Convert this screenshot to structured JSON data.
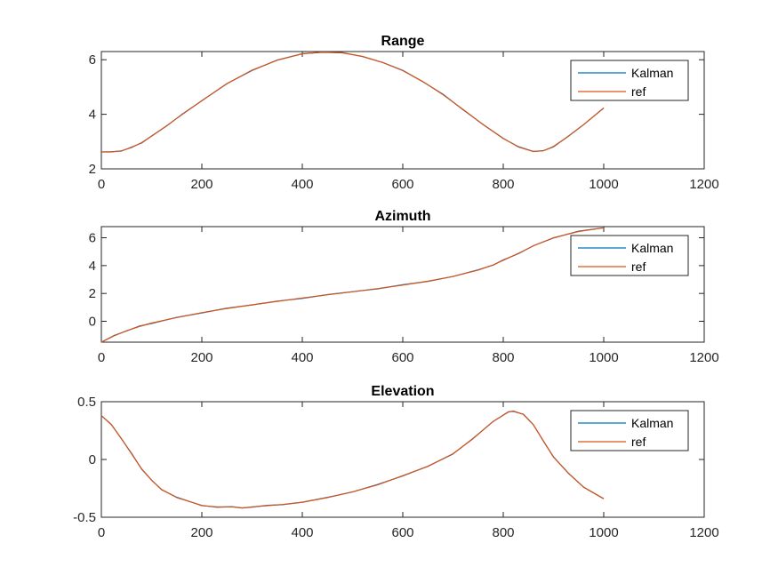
{
  "chart_data": [
    {
      "type": "line",
      "title": "Range",
      "xlim": [
        0,
        1200
      ],
      "ylim": [
        2,
        6.3
      ],
      "xticks": [
        0,
        200,
        400,
        600,
        800,
        1000,
        1200
      ],
      "yticks": [
        2,
        4,
        6
      ],
      "legend_position": "top-right",
      "series": [
        {
          "name": "Kalman",
          "color": "#0072BD",
          "x": [
            0,
            20,
            40,
            60,
            80,
            100,
            130,
            160,
            200,
            250,
            300,
            350,
            400,
            440,
            480,
            520,
            560,
            600,
            640,
            680,
            720,
            760,
            800,
            830,
            860,
            880,
            900,
            930,
            960,
            1000
          ],
          "y": [
            2.62,
            2.62,
            2.66,
            2.78,
            2.96,
            3.2,
            3.58,
            3.98,
            4.5,
            5.12,
            5.62,
            5.98,
            6.22,
            6.28,
            6.25,
            6.12,
            5.9,
            5.6,
            5.2,
            4.72,
            4.18,
            3.62,
            3.12,
            2.8,
            2.64,
            2.66,
            2.82,
            3.2,
            3.62,
            4.23
          ]
        },
        {
          "name": "ref",
          "color": "#D95319",
          "x": [
            0,
            20,
            40,
            60,
            80,
            100,
            130,
            160,
            200,
            250,
            300,
            350,
            400,
            440,
            480,
            520,
            560,
            600,
            640,
            680,
            720,
            760,
            800,
            830,
            860,
            880,
            900,
            930,
            960,
            1000
          ],
          "y": [
            2.62,
            2.62,
            2.66,
            2.78,
            2.96,
            3.2,
            3.58,
            3.98,
            4.5,
            5.12,
            5.62,
            5.98,
            6.22,
            6.28,
            6.25,
            6.12,
            5.9,
            5.6,
            5.2,
            4.72,
            4.18,
            3.62,
            3.12,
            2.8,
            2.64,
            2.66,
            2.82,
            3.2,
            3.62,
            4.23
          ]
        }
      ]
    },
    {
      "type": "line",
      "title": "Azimuth",
      "xlim": [
        0,
        1200
      ],
      "ylim": [
        -1.5,
        6.8
      ],
      "xticks": [
        0,
        200,
        400,
        600,
        800,
        1000,
        1200
      ],
      "yticks": [
        0,
        2,
        4,
        6
      ],
      "legend_position": "top-right",
      "series": [
        {
          "name": "Kalman",
          "color": "#0072BD",
          "x": [
            0,
            25,
            50,
            75,
            100,
            150,
            200,
            250,
            300,
            350,
            400,
            450,
            500,
            550,
            600,
            650,
            700,
            750,
            780,
            800,
            830,
            860,
            900,
            950,
            1000
          ],
          "y": [
            -1.5,
            -1.05,
            -0.68,
            -0.38,
            -0.13,
            0.27,
            0.62,
            0.92,
            1.18,
            1.43,
            1.67,
            1.9,
            2.12,
            2.35,
            2.6,
            2.88,
            3.22,
            3.68,
            4.05,
            4.38,
            4.88,
            5.42,
            6.0,
            6.45,
            6.72
          ]
        },
        {
          "name": "ref",
          "color": "#D95319",
          "x": [
            0,
            25,
            50,
            75,
            100,
            150,
            200,
            250,
            300,
            350,
            400,
            450,
            500,
            550,
            600,
            650,
            700,
            750,
            780,
            800,
            830,
            860,
            900,
            950,
            1000
          ],
          "y": [
            -1.5,
            -1.05,
            -0.68,
            -0.38,
            -0.13,
            0.27,
            0.62,
            0.92,
            1.18,
            1.43,
            1.67,
            1.9,
            2.12,
            2.35,
            2.6,
            2.88,
            3.22,
            3.68,
            4.05,
            4.38,
            4.88,
            5.42,
            6.0,
            6.45,
            6.72
          ]
        }
      ]
    },
    {
      "type": "line",
      "title": "Elevation",
      "xlim": [
        0,
        1200
      ],
      "ylim": [
        -0.5,
        0.5
      ],
      "xticks": [
        0,
        200,
        400,
        600,
        800,
        1000,
        1200
      ],
      "yticks": [
        -0.5,
        0,
        0.5
      ],
      "legend_position": "top-right",
      "series": [
        {
          "name": "Kalman",
          "color": "#0072BD",
          "x": [
            0,
            20,
            40,
            60,
            80,
            100,
            120,
            150,
            180,
            200,
            230,
            260,
            280,
            300,
            330,
            360,
            400,
            450,
            500,
            550,
            600,
            650,
            700,
            740,
            780,
            810,
            820,
            840,
            860,
            880,
            900,
            930,
            960,
            1000
          ],
          "y": [
            0.38,
            0.3,
            0.18,
            0.05,
            -0.08,
            -0.18,
            -0.26,
            -0.33,
            -0.37,
            -0.4,
            -0.41,
            -0.41,
            -0.42,
            -0.41,
            -0.4,
            -0.39,
            -0.37,
            -0.33,
            -0.28,
            -0.22,
            -0.14,
            -0.06,
            0.05,
            0.18,
            0.33,
            0.41,
            0.42,
            0.39,
            0.3,
            0.16,
            0.02,
            -0.12,
            -0.24,
            -0.34
          ]
        },
        {
          "name": "ref",
          "color": "#D95319",
          "x": [
            0,
            20,
            40,
            60,
            80,
            100,
            120,
            150,
            180,
            200,
            230,
            260,
            280,
            300,
            330,
            360,
            400,
            450,
            500,
            550,
            600,
            650,
            700,
            740,
            780,
            810,
            820,
            840,
            860,
            880,
            900,
            930,
            960,
            1000
          ],
          "y": [
            0.38,
            0.3,
            0.18,
            0.05,
            -0.08,
            -0.18,
            -0.26,
            -0.33,
            -0.37,
            -0.4,
            -0.41,
            -0.41,
            -0.42,
            -0.41,
            -0.4,
            -0.39,
            -0.37,
            -0.33,
            -0.28,
            -0.22,
            -0.14,
            -0.06,
            0.05,
            0.18,
            0.33,
            0.41,
            0.42,
            0.39,
            0.3,
            0.16,
            0.02,
            -0.12,
            -0.24,
            -0.34
          ]
        }
      ]
    }
  ]
}
